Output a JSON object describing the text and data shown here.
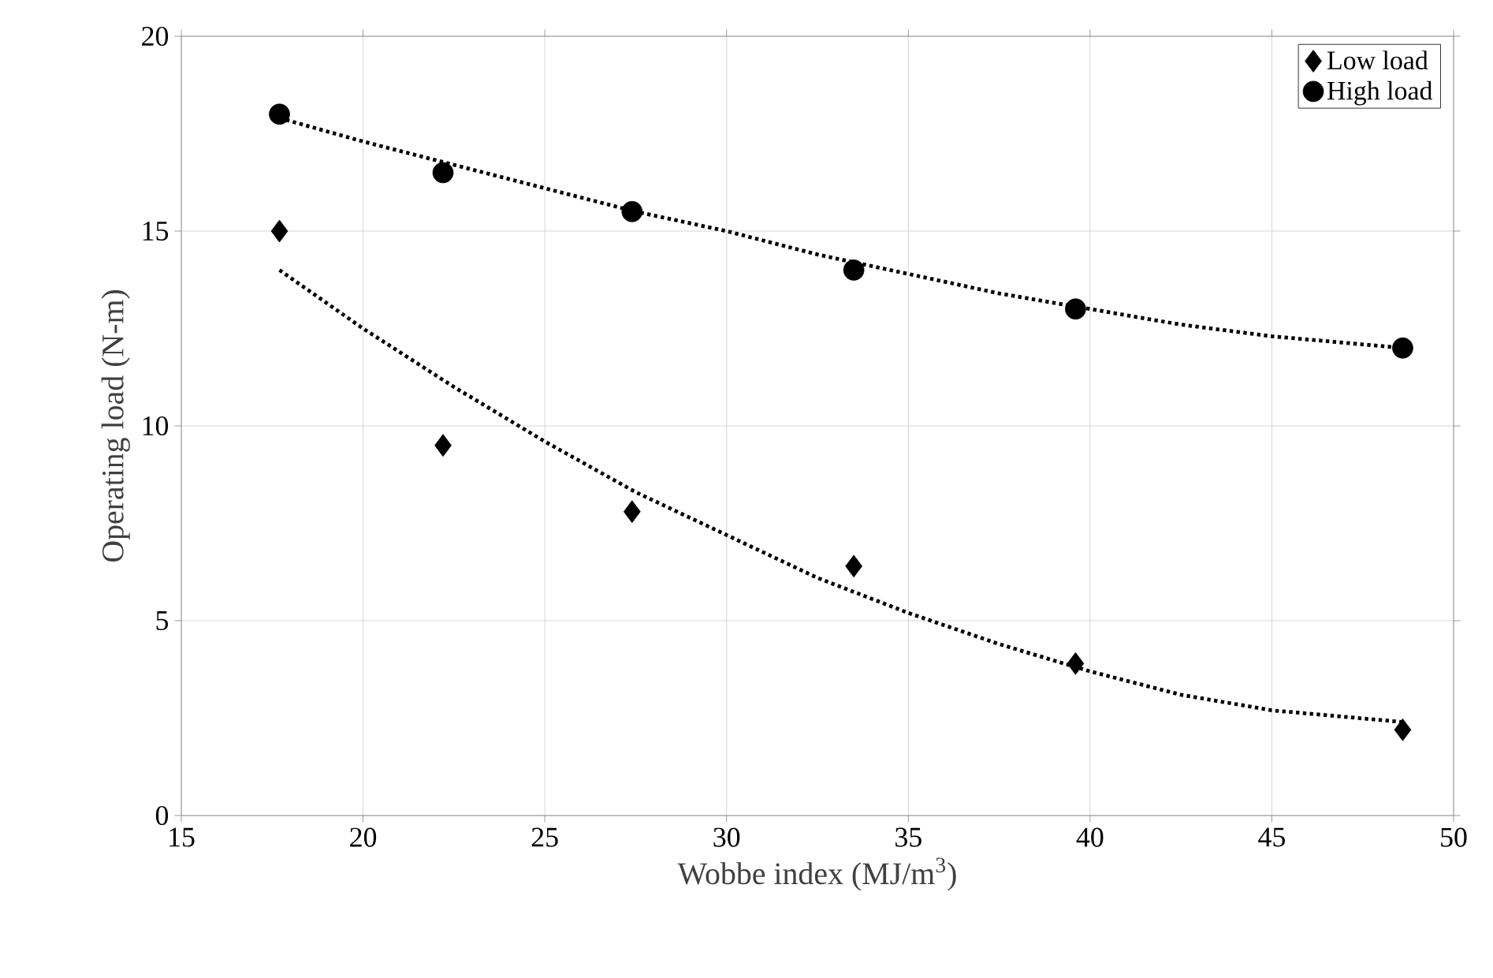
{
  "chart_data": {
    "type": "scatter",
    "xlabel": "Wobbe index (MJ/m$^{3}$)",
    "ylabel": "Operating load (N-m)",
    "xlim": [
      15,
      50
    ],
    "ylim": [
      0,
      20
    ],
    "xticks": [
      15,
      20,
      25,
      30,
      35,
      40,
      45,
      50
    ],
    "yticks": [
      0,
      5,
      10,
      15,
      20
    ],
    "grid": true,
    "legend": "top right",
    "series": [
      {
        "name": "Low load",
        "color": "#000000",
        "marker": "diamond",
        "x": [
          17.7,
          22.2,
          27.4,
          33.5,
          39.6,
          48.6
        ],
        "values": [
          15.0,
          9.5,
          7.8,
          6.4,
          3.9,
          2.2
        ]
      },
      {
        "name": "High load",
        "color": "#000000",
        "marker": "circle",
        "x": [
          17.7,
          22.2,
          27.4,
          33.5,
          39.6,
          48.6
        ],
        "values": [
          18.0,
          16.5,
          15.5,
          14.0,
          13.0,
          12.0
        ]
      },
      {
        "type": "line",
        "line_style": "dotted",
        "color": "#000000",
        "x": [
          17.7,
          20,
          22.5,
          25,
          27.5,
          30,
          32.5,
          35,
          37.5,
          40,
          42.5,
          45,
          48.6
        ],
        "values": [
          14.0,
          12.5,
          11.0,
          9.6,
          8.3,
          7.2,
          6.1,
          5.2,
          4.4,
          3.7,
          3.1,
          2.7,
          2.4
        ]
      },
      {
        "type": "line",
        "line_style": "dotted",
        "color": "#000000",
        "x": [
          17.7,
          20,
          22.5,
          25,
          27.5,
          30,
          32.5,
          35,
          37.5,
          40,
          42.5,
          45,
          48.6
        ],
        "values": [
          17.9,
          17.3,
          16.7,
          16.1,
          15.5,
          15.0,
          14.4,
          13.9,
          13.4,
          13.0,
          12.6,
          12.3,
          12.0
        ]
      }
    ]
  }
}
